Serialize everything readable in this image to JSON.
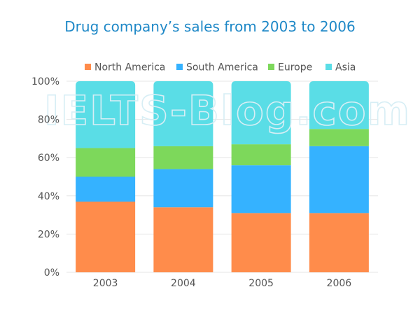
{
  "colors": {
    "title": "#1e88c7",
    "grid": "#e6e6e6",
    "axis_text": "#555555",
    "watermark": "#d7eef5"
  },
  "watermark": "IELTS-Blog.com",
  "chart_data": {
    "type": "bar",
    "stacked": true,
    "title": "Drug company’s sales from 2003 to 2006",
    "categories": [
      "2003",
      "2004",
      "2005",
      "2006"
    ],
    "y_tick_labels": [
      "0%",
      "20%",
      "40%",
      "60%",
      "80%",
      "100%"
    ],
    "y_unit": "%",
    "ylim": [
      0,
      100
    ],
    "grid": true,
    "legend_position": "top",
    "series": [
      {
        "name": "North America",
        "color": "#ff8c4b",
        "values": [
          37,
          34,
          31,
          31
        ]
      },
      {
        "name": "South America",
        "color": "#35b2ff",
        "values": [
          13,
          20,
          25,
          35
        ]
      },
      {
        "name": "Europe",
        "color": "#7dd85b",
        "values": [
          15,
          12,
          11,
          9
        ]
      },
      {
        "name": "Asia",
        "color": "#5adde6",
        "values": [
          35,
          34,
          33,
          25
        ]
      }
    ]
  }
}
